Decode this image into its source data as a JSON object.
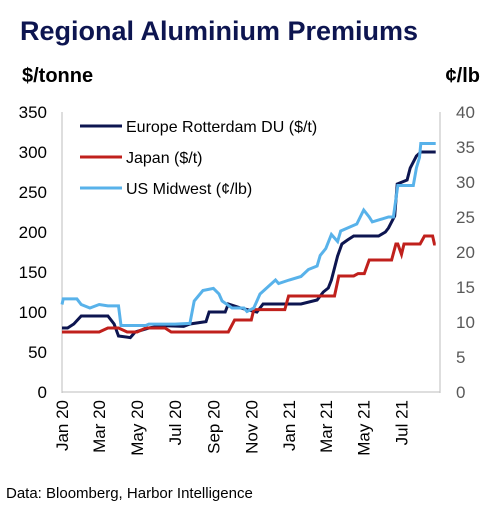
{
  "chart_data": {
    "type": "line",
    "title": "Regional Aluminium Premiums",
    "y_left_label": "$/tonne",
    "y_right_label": "¢/lb",
    "y_left_ticks": [
      "0",
      "50",
      "100",
      "150",
      "200",
      "250",
      "300",
      "350"
    ],
    "y_right_ticks": [
      "0",
      "5",
      "10",
      "15",
      "20",
      "25",
      "30",
      "35",
      "40"
    ],
    "ylim_left": [
      0,
      350
    ],
    "ylim_right": [
      0,
      40
    ],
    "x_tick_labels": [
      "Jan 20",
      "Mar 20",
      "May 20",
      "Jul 20",
      "Sep 20",
      "Nov 20",
      "Jan 21",
      "Mar 21",
      "May 21",
      "Jul 21"
    ],
    "x_ticks": [
      "2020-01-01",
      "2020-03-01",
      "2020-05-01",
      "2020-07-01",
      "2020-09-01",
      "2020-11-01",
      "2021-01-01",
      "2021-03-01",
      "2021-05-01",
      "2021-07-01"
    ],
    "xlim": [
      "2020-01-01",
      "2021-09-01"
    ],
    "grid": false,
    "legend_position": "top-left",
    "series": [
      {
        "name": "Europe Rotterdam DU ($/t)",
        "axis": "left",
        "color": "#0d1550",
        "points": [
          [
            "2020-01-01",
            80
          ],
          [
            "2020-01-10",
            80
          ],
          [
            "2020-01-20",
            85
          ],
          [
            "2020-02-01",
            95
          ],
          [
            "2020-03-15",
            95
          ],
          [
            "2020-03-25",
            85
          ],
          [
            "2020-04-01",
            70
          ],
          [
            "2020-04-20",
            68
          ],
          [
            "2020-04-28",
            75
          ],
          [
            "2020-05-20",
            80
          ],
          [
            "2020-06-10",
            83
          ],
          [
            "2020-07-15",
            82
          ],
          [
            "2020-07-25",
            85
          ],
          [
            "2020-08-20",
            88
          ],
          [
            "2020-08-25",
            100
          ],
          [
            "2020-09-20",
            100
          ],
          [
            "2020-09-25",
            110
          ],
          [
            "2020-10-15",
            105
          ],
          [
            "2020-11-10",
            100
          ],
          [
            "2020-11-20",
            110
          ],
          [
            "2020-12-10",
            110
          ],
          [
            "2020-12-15",
            110
          ],
          [
            "2021-01-20",
            110
          ],
          [
            "2021-02-15",
            115
          ],
          [
            "2021-02-25",
            125
          ],
          [
            "2021-03-05",
            130
          ],
          [
            "2021-03-10",
            140
          ],
          [
            "2021-03-15",
            155
          ],
          [
            "2021-03-20",
            170
          ],
          [
            "2021-03-27",
            185
          ],
          [
            "2021-04-05",
            190
          ],
          [
            "2021-04-15",
            195
          ],
          [
            "2021-05-25",
            195
          ],
          [
            "2021-06-05",
            200
          ],
          [
            "2021-06-10",
            205
          ],
          [
            "2021-06-20",
            220
          ],
          [
            "2021-06-24",
            260
          ],
          [
            "2021-07-10",
            265
          ],
          [
            "2021-07-15",
            280
          ],
          [
            "2021-07-25",
            295
          ],
          [
            "2021-08-01",
            300
          ],
          [
            "2021-08-25",
            300
          ]
        ]
      },
      {
        "name": "Japan ($/t)",
        "axis": "left",
        "color": "#c0201c",
        "points": [
          [
            "2020-01-01",
            75
          ],
          [
            "2020-03-01",
            75
          ],
          [
            "2020-03-15",
            80
          ],
          [
            "2020-04-01",
            80
          ],
          [
            "2020-04-15",
            75
          ],
          [
            "2020-05-01",
            75
          ],
          [
            "2020-05-15",
            80
          ],
          [
            "2020-06-15",
            80
          ],
          [
            "2020-06-25",
            75
          ],
          [
            "2020-09-25",
            75
          ],
          [
            "2020-10-05",
            90
          ],
          [
            "2020-11-01",
            90
          ],
          [
            "2020-11-05",
            103
          ],
          [
            "2020-12-25",
            103
          ],
          [
            "2020-12-31",
            120
          ],
          [
            "2021-03-15",
            120
          ],
          [
            "2021-03-22",
            145
          ],
          [
            "2021-04-15",
            145
          ],
          [
            "2021-04-22",
            148
          ],
          [
            "2021-05-02",
            148
          ],
          [
            "2021-05-10",
            165
          ],
          [
            "2021-06-15",
            165
          ],
          [
            "2021-06-22",
            185
          ],
          [
            "2021-06-25",
            185
          ],
          [
            "2021-07-01",
            172
          ],
          [
            "2021-07-05",
            185
          ],
          [
            "2021-07-31",
            185
          ],
          [
            "2021-08-07",
            195
          ],
          [
            "2021-08-20",
            195
          ],
          [
            "2021-08-23",
            185
          ],
          [
            "2021-08-25",
            185
          ]
        ]
      },
      {
        "name": "US Midwest (¢/lb)",
        "axis": "right",
        "color": "#58b2ea",
        "points": [
          [
            "2020-01-01",
            12.5
          ],
          [
            "2020-01-03",
            13.3
          ],
          [
            "2020-01-25",
            13.3
          ],
          [
            "2020-02-01",
            12.5
          ],
          [
            "2020-02-15",
            12.0
          ],
          [
            "2020-03-01",
            12.5
          ],
          [
            "2020-03-15",
            12.3
          ],
          [
            "2020-04-01",
            12.3
          ],
          [
            "2020-04-05",
            9.5
          ],
          [
            "2020-05-15",
            9.5
          ],
          [
            "2020-05-20",
            9.7
          ],
          [
            "2020-07-01",
            9.7
          ],
          [
            "2020-07-25",
            9.8
          ],
          [
            "2020-08-01",
            13.0
          ],
          [
            "2020-08-15",
            14.5
          ],
          [
            "2020-09-01",
            14.8
          ],
          [
            "2020-09-10",
            14.0
          ],
          [
            "2020-09-15",
            13.0
          ],
          [
            "2020-10-01",
            12.0
          ],
          [
            "2020-10-20",
            12.0
          ],
          [
            "2020-10-25",
            11.5
          ],
          [
            "2020-11-05",
            12.0
          ],
          [
            "2020-11-15",
            14.0
          ],
          [
            "2020-12-10",
            16.0
          ],
          [
            "2020-12-15",
            15.5
          ],
          [
            "2021-01-01",
            16.0
          ],
          [
            "2021-01-20",
            16.5
          ],
          [
            "2021-02-01",
            17.5
          ],
          [
            "2021-02-15",
            18.0
          ],
          [
            "2021-02-20",
            19.5
          ],
          [
            "2021-03-01",
            20.5
          ],
          [
            "2021-03-10",
            22.5
          ],
          [
            "2021-03-20",
            21.5
          ],
          [
            "2021-03-25",
            23.0
          ],
          [
            "2021-04-20",
            24.0
          ],
          [
            "2021-05-01",
            26.0
          ],
          [
            "2021-05-10",
            25.0
          ],
          [
            "2021-05-15",
            24.3
          ],
          [
            "2021-06-10",
            25.0
          ],
          [
            "2021-06-18",
            25.0
          ],
          [
            "2021-06-25",
            29.5
          ],
          [
            "2021-07-20",
            29.5
          ],
          [
            "2021-07-25",
            32.0
          ],
          [
            "2021-07-30",
            33.5
          ],
          [
            "2021-08-01",
            35.5
          ],
          [
            "2021-08-25",
            35.5
          ]
        ]
      }
    ]
  },
  "source": "Data: Bloomberg, Harbor Intelligence"
}
